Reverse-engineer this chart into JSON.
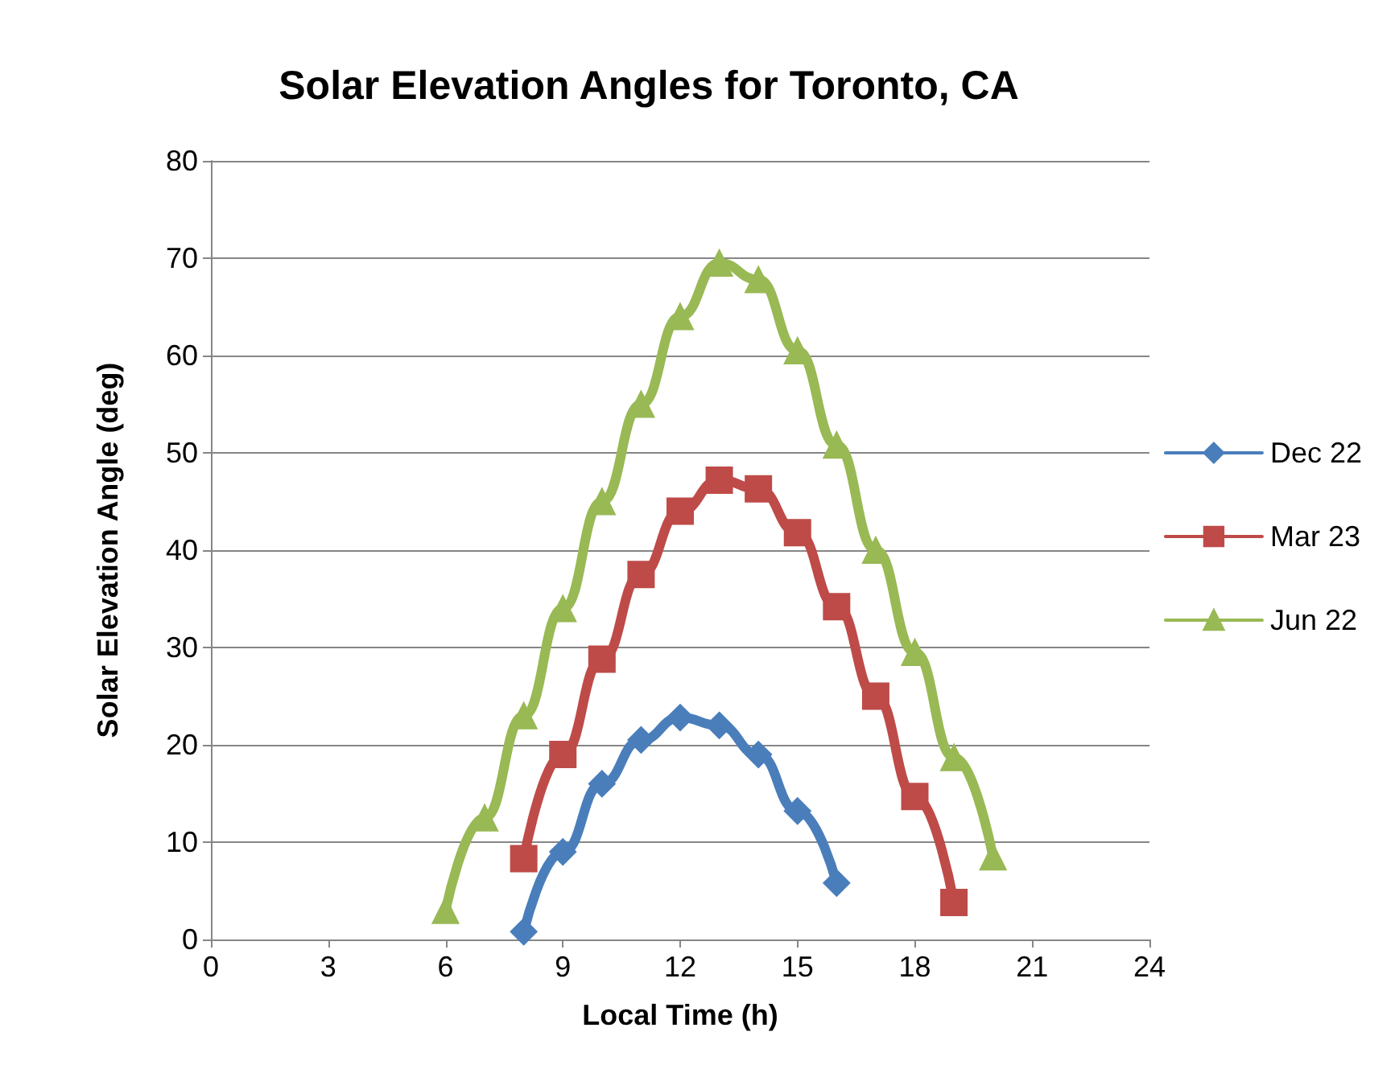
{
  "chart_data": {
    "type": "line",
    "title": "Solar Elevation Angles for Toronto, CA",
    "xlabel": "Local Time (h)",
    "ylabel": "Solar Elevation Angle (deg)",
    "series": [
      {
        "name": "Dec 22",
        "color": "#4a7ebb",
        "marker": "diamond",
        "x": [
          8,
          9,
          10,
          11,
          12,
          13,
          14,
          15,
          16
        ],
        "values": [
          0.8,
          9,
          16,
          20.5,
          22.8,
          22,
          19,
          13.2,
          5.8
        ]
      },
      {
        "name": "Mar 23",
        "color": "#be4b48",
        "marker": "square",
        "x": [
          8,
          9,
          10,
          11,
          12,
          13,
          14,
          15,
          16,
          17,
          18,
          19
        ],
        "values": [
          8.3,
          19,
          28.8,
          37.5,
          44,
          47.2,
          46.3,
          41.8,
          34.2,
          25,
          14.7,
          3.8
        ]
      },
      {
        "name": "Jun 22",
        "color": "#98b954",
        "marker": "triangle",
        "x": [
          6,
          7,
          8,
          9,
          10,
          11,
          12,
          13,
          14,
          15,
          16,
          17,
          18,
          19,
          20
        ],
        "values": [
          3,
          12.5,
          23,
          34,
          45,
          55,
          64,
          69.5,
          67.8,
          60.5,
          50.8,
          40,
          29.5,
          18.7,
          8.5
        ]
      }
    ],
    "xlim": [
      0,
      24
    ],
    "xticks": [
      0,
      3,
      6,
      9,
      12,
      15,
      18,
      21,
      24
    ],
    "ylim": [
      0,
      80
    ],
    "yticks": [
      0,
      10,
      20,
      30,
      40,
      50,
      60,
      70,
      80
    ],
    "grid": "y",
    "legend": "right",
    "line_style": "solid"
  }
}
